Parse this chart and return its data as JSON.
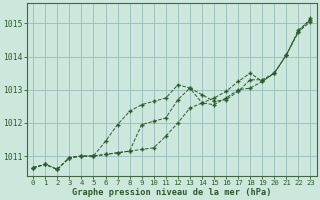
{
  "background_color": "#cce8dd",
  "grid_color": "#99bbbb",
  "line_color": "#2d5a2d",
  "xlabel": "Graphe pression niveau de la mer (hPa)",
  "ylim": [
    1010.4,
    1015.6
  ],
  "xlim": [
    -0.5,
    23.5
  ],
  "yticks": [
    1011,
    1012,
    1013,
    1014,
    1015
  ],
  "xticks": [
    0,
    1,
    2,
    3,
    4,
    5,
    6,
    7,
    8,
    9,
    10,
    11,
    12,
    13,
    14,
    15,
    16,
    17,
    18,
    19,
    20,
    21,
    22,
    23
  ],
  "series1_x": [
    0,
    1,
    2,
    3,
    4,
    5,
    6,
    7,
    8,
    9,
    10,
    11,
    12,
    13,
    14,
    15,
    16,
    17,
    18,
    19,
    20,
    21,
    22,
    23
  ],
  "series1_y": [
    1010.65,
    1010.75,
    1010.6,
    1010.95,
    1011.0,
    1011.0,
    1011.05,
    1011.1,
    1011.15,
    1011.2,
    1011.25,
    1011.6,
    1012.0,
    1012.45,
    1012.6,
    1012.55,
    1012.75,
    1013.0,
    1013.05,
    1013.25,
    1013.5,
    1014.05,
    1014.8,
    1015.1
  ],
  "series2_x": [
    0,
    1,
    2,
    3,
    4,
    5,
    6,
    7,
    8,
    9,
    10,
    11,
    12,
    13,
    14,
    15,
    16,
    17,
    18,
    19,
    20,
    21,
    22,
    23
  ],
  "series2_y": [
    1010.65,
    1010.75,
    1010.6,
    1010.95,
    1011.0,
    1011.0,
    1011.45,
    1011.95,
    1012.35,
    1012.55,
    1012.65,
    1012.75,
    1013.15,
    1013.05,
    1012.6,
    1012.75,
    1012.95,
    1013.25,
    1013.5,
    1013.25,
    1013.5,
    1014.05,
    1014.75,
    1015.05
  ],
  "series3_x": [
    0,
    1,
    2,
    3,
    4,
    5,
    6,
    7,
    8,
    9,
    10,
    11,
    12,
    13,
    14,
    15,
    16,
    17,
    18,
    19,
    20,
    21,
    22,
    23
  ],
  "series3_y": [
    1010.65,
    1010.75,
    1010.6,
    1010.95,
    1011.0,
    1011.0,
    1011.05,
    1011.1,
    1011.15,
    1011.95,
    1012.05,
    1012.15,
    1012.7,
    1013.05,
    1012.85,
    1012.65,
    1012.7,
    1012.95,
    1013.3,
    1013.3,
    1013.5,
    1014.05,
    1014.75,
    1015.15
  ]
}
